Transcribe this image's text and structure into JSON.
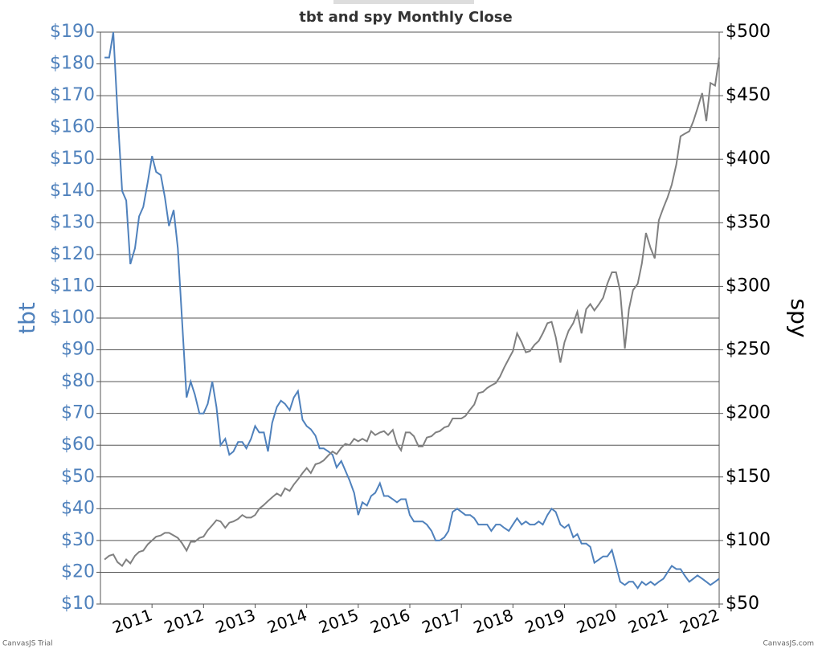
{
  "chart_data": {
    "type": "line",
    "title": "tbt and spy Monthly Close",
    "ylabel": "tbt",
    "y2label": "spy",
    "credits": [
      "CanvasJS Trial",
      "CanvasJS.com"
    ],
    "x": [
      2010.08,
      2010.17,
      2010.25,
      2010.33,
      2010.42,
      2010.5,
      2010.58,
      2010.67,
      2010.75,
      2010.83,
      2010.92,
      2011,
      2011.08,
      2011.17,
      2011.25,
      2011.33,
      2011.42,
      2011.5,
      2011.58,
      2011.67,
      2011.75,
      2011.83,
      2011.92,
      2012,
      2012.08,
      2012.17,
      2012.25,
      2012.33,
      2012.42,
      2012.5,
      2012.58,
      2012.67,
      2012.75,
      2012.83,
      2012.92,
      2013,
      2013.08,
      2013.17,
      2013.25,
      2013.33,
      2013.42,
      2013.5,
      2013.58,
      2013.67,
      2013.75,
      2013.83,
      2013.92,
      2014,
      2014.08,
      2014.17,
      2014.25,
      2014.33,
      2014.42,
      2014.5,
      2014.58,
      2014.67,
      2014.75,
      2014.83,
      2014.92,
      2015,
      2015.08,
      2015.17,
      2015.25,
      2015.33,
      2015.42,
      2015.5,
      2015.58,
      2015.67,
      2015.75,
      2015.83,
      2015.92,
      2016,
      2016.08,
      2016.17,
      2016.25,
      2016.33,
      2016.42,
      2016.5,
      2016.58,
      2016.67,
      2016.75,
      2016.83,
      2016.92,
      2017,
      2017.08,
      2017.17,
      2017.25,
      2017.33,
      2017.42,
      2017.5,
      2017.58,
      2017.67,
      2017.75,
      2017.83,
      2017.92,
      2018,
      2018.08,
      2018.17,
      2018.25,
      2018.33,
      2018.42,
      2018.5,
      2018.58,
      2018.67,
      2018.75,
      2018.83,
      2018.92,
      2019,
      2019.08,
      2019.17,
      2019.25,
      2019.33,
      2019.42,
      2019.5,
      2019.58,
      2019.67,
      2019.75,
      2019.83,
      2019.92,
      2020,
      2020.08,
      2020.17,
      2020.25,
      2020.33,
      2020.42,
      2020.5,
      2020.58,
      2020.67,
      2020.75,
      2020.83,
      2020.92,
      2021,
      2021.08,
      2021.17,
      2021.25,
      2021.33,
      2021.42,
      2021.5,
      2021.58,
      2021.67,
      2021.75,
      2021.83,
      2021.92,
      2022
    ],
    "series": [
      {
        "name": "tbt",
        "color": "#4f81bc",
        "values": [
          182,
          182,
          190,
          165,
          140,
          137,
          117,
          122,
          132,
          135,
          143,
          151,
          146,
          145,
          138,
          129,
          134,
          122,
          100,
          75,
          80,
          76,
          70,
          70,
          73,
          80,
          72,
          60,
          62,
          57,
          58,
          61,
          61,
          59,
          62,
          66,
          64,
          64,
          58,
          67,
          72,
          74,
          73,
          71,
          75,
          77,
          68,
          66,
          65,
          63,
          59,
          59,
          58,
          57,
          53,
          55,
          52,
          49,
          45,
          38,
          42,
          41,
          44,
          45,
          48,
          44,
          44,
          43,
          42,
          43,
          43,
          38,
          36,
          36,
          36,
          35,
          33,
          30,
          30,
          31,
          33,
          39,
          40,
          39,
          38,
          38,
          37,
          35,
          35,
          35,
          33,
          35,
          35,
          34,
          33,
          35,
          37,
          35,
          36,
          35,
          35,
          36,
          35,
          38,
          40,
          39,
          35,
          34,
          35,
          31,
          32,
          29,
          29,
          28,
          23,
          24,
          25,
          25,
          27,
          22,
          17,
          16,
          17,
          17,
          15,
          17,
          16,
          17,
          16,
          17,
          18,
          20,
          22,
          21,
          21,
          19,
          17,
          18,
          19,
          18,
          17,
          16,
          17,
          18
        ]
      },
      {
        "name": "spy",
        "color": "#808080",
        "axis": "y2",
        "values": [
          85,
          88,
          89,
          83,
          80,
          85,
          82,
          88,
          91,
          92,
          97,
          100,
          103,
          104,
          106,
          106,
          104,
          102,
          98,
          92,
          99,
          99,
          102,
          103,
          108,
          112,
          116,
          115,
          110,
          114,
          115,
          117,
          120,
          118,
          118,
          120,
          125,
          128,
          131,
          134,
          137,
          135,
          141,
          139,
          144,
          148,
          153,
          157,
          153,
          160,
          161,
          163,
          167,
          170,
          168,
          173,
          176,
          175,
          180,
          178,
          180,
          178,
          186,
          183,
          185,
          186,
          183,
          187,
          176,
          171,
          185,
          185,
          182,
          174,
          174,
          181,
          182,
          185,
          186,
          189,
          190,
          196,
          196,
          196,
          198,
          203,
          207,
          216,
          217,
          220,
          222,
          224,
          229,
          236,
          243,
          249,
          263,
          256,
          248,
          249,
          254,
          257,
          263,
          271,
          272,
          260,
          240,
          256,
          265,
          271,
          280,
          263,
          282,
          286,
          281,
          286,
          291,
          302,
          311,
          311,
          296,
          251,
          282,
          297,
          302,
          318,
          342,
          330,
          322,
          352,
          362,
          370,
          380,
          396,
          418,
          420,
          422,
          430,
          440,
          452,
          430,
          460,
          458,
          480
        ]
      }
    ],
    "xlim": [
      2010,
      2022
    ],
    "xticks": [
      2011,
      2012,
      2013,
      2014,
      2015,
      2016,
      2017,
      2018,
      2019,
      2020,
      2021,
      2022
    ],
    "ylim": [
      10,
      190
    ],
    "yticks": [
      {
        "value": 10,
        "label": "$10"
      },
      {
        "value": 20,
        "label": "$20"
      },
      {
        "value": 30,
        "label": "$30"
      },
      {
        "value": 40,
        "label": "$40"
      },
      {
        "value": 50,
        "label": "$50"
      },
      {
        "value": 60,
        "label": "$60"
      },
      {
        "value": 70,
        "label": "$70"
      },
      {
        "value": 80,
        "label": "$80"
      },
      {
        "value": 90,
        "label": "$90"
      },
      {
        "value": 100,
        "label": "$100"
      },
      {
        "value": 110,
        "label": "$110"
      },
      {
        "value": 120,
        "label": "$120"
      },
      {
        "value": 130,
        "label": "$130"
      },
      {
        "value": 140,
        "label": "$140"
      },
      {
        "value": 150,
        "label": "$150"
      },
      {
        "value": 160,
        "label": "$160"
      },
      {
        "value": 170,
        "label": "$170"
      },
      {
        "value": 180,
        "label": "$180"
      },
      {
        "value": 190,
        "label": "$190"
      }
    ],
    "y2lim": [
      50,
      500
    ],
    "y2ticks": [
      {
        "value": 50,
        "label": "$50"
      },
      {
        "value": 100,
        "label": "$100"
      },
      {
        "value": 150,
        "label": "$150"
      },
      {
        "value": 200,
        "label": "$200"
      },
      {
        "value": 250,
        "label": "$250"
      },
      {
        "value": 300,
        "label": "$300"
      },
      {
        "value": 350,
        "label": "$350"
      },
      {
        "value": 400,
        "label": "$400"
      },
      {
        "value": 450,
        "label": "$450"
      },
      {
        "value": 500,
        "label": "$500"
      }
    ],
    "grid": true
  }
}
